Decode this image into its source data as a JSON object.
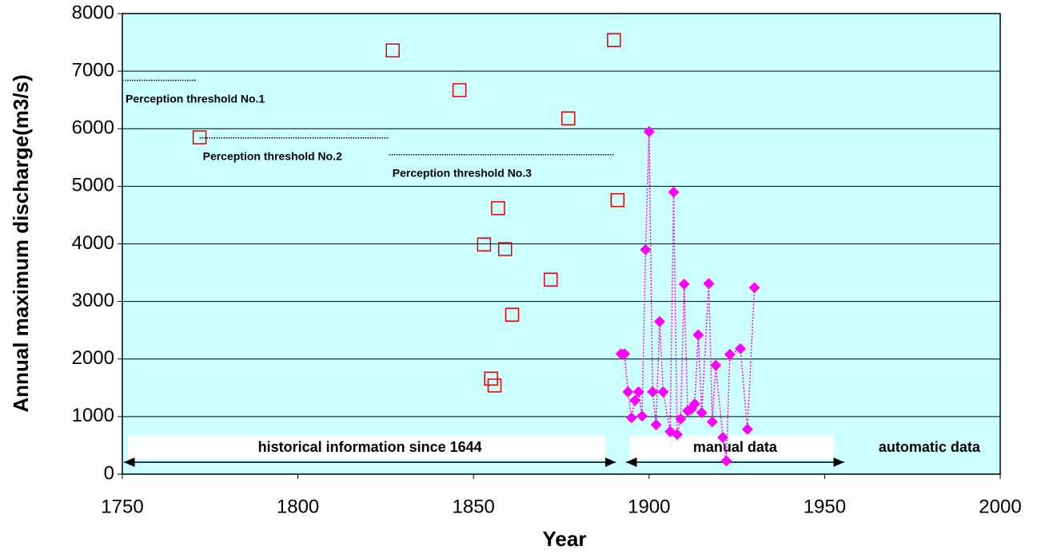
{
  "chart_data": {
    "type": "scatter",
    "xlabel": "Year",
    "ylabel": "Annual maximum discharge(m3/s)",
    "xlim": [
      1750,
      2000
    ],
    "xticks": [
      1750,
      1800,
      1850,
      1900,
      1950,
      2000
    ],
    "ylim": [
      0,
      8000
    ],
    "yticks": [
      0,
      1000,
      2000,
      3000,
      4000,
      5000,
      6000,
      7000,
      8000
    ],
    "grid": true,
    "background": "#ccffff",
    "series": [
      {
        "color": "#e00000",
        "marker": "square",
        "line": false,
        "x": [
          1772,
          1827,
          1846,
          1877,
          1890,
          1891,
          1857,
          1853,
          1859,
          1872,
          1861,
          1855,
          1856
        ],
        "values": [
          5850,
          7360,
          6670,
          6180,
          7540,
          4760,
          4620,
          3990,
          3910,
          3380,
          2770,
          1660,
          1540
        ]
      },
      {
        "color": "#ff00ff",
        "marker": "diamond",
        "line": true,
        "x": [
          1892,
          1893,
          1894,
          1895,
          1896,
          1897,
          1898,
          1899,
          1900,
          1901,
          1902,
          1903,
          1904,
          1906,
          1907,
          1908,
          1909,
          1910,
          1911,
          1912,
          1913,
          1914,
          1915,
          1917,
          1918,
          1919,
          1921,
          1922,
          1923,
          1926,
          1928,
          1930
        ],
        "values": [
          2090,
          2090,
          1430,
          980,
          1280,
          1430,
          1010,
          3900,
          5950,
          1430,
          860,
          2650,
          1430,
          740,
          4900,
          690,
          960,
          3300,
          1100,
          1130,
          1220,
          2420,
          1070,
          3310,
          910,
          1890,
          640,
          230,
          2080,
          2180,
          780,
          3240
        ]
      }
    ],
    "thresholds": [
      {
        "label": "Perception threshold No.1",
        "value": 6840,
        "x": [
          1750,
          1771
        ]
      },
      {
        "label": "Perception threshold  No.2",
        "value": 5840,
        "x": [
          1772,
          1826
        ]
      },
      {
        "label": "Perception threshold No.3",
        "value": 5550,
        "x": [
          1826,
          1890
        ]
      }
    ],
    "periods": [
      {
        "label": "historical information since 1644",
        "x": [
          1750,
          1891
        ],
        "arrow": true
      },
      {
        "label": "manual data",
        "x": [
          1893,
          1956
        ],
        "arrow": true
      },
      {
        "label": "automatic data",
        "x": [
          1956,
          2000
        ],
        "arrow": false
      }
    ]
  }
}
